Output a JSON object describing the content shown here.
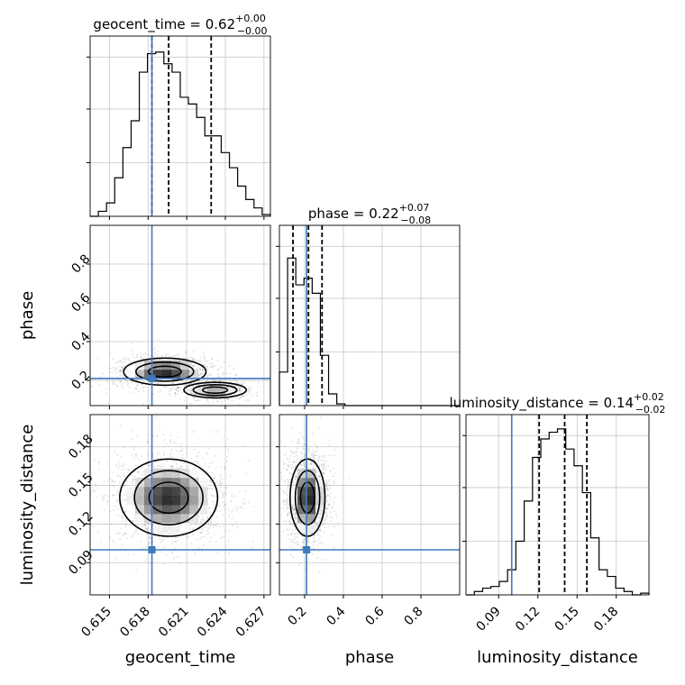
{
  "chart_data": {
    "type": "corner",
    "truth_color": "#3b7bbf",
    "params": [
      {
        "name": "geocent_time",
        "title": {
          "prefix": "geocent_time = ",
          "value": "0.62",
          "plus": "+0.00",
          "minus": "−0.00"
        },
        "range": [
          0.6135,
          0.6275
        ],
        "ticks": [
          0.615,
          0.618,
          0.621,
          0.624,
          0.627
        ],
        "tick_labels": [
          "0.615",
          "0.618",
          "0.621",
          "0.624",
          "0.627"
        ],
        "truth": 0.6183,
        "quantiles": [
          0.6183,
          0.6196,
          0.6229
        ],
        "hist": [
          0,
          0.03,
          0.08,
          0.23,
          0.41,
          0.57,
          0.86,
          0.97,
          0.98,
          0.91,
          0.86,
          0.71,
          0.67,
          0.59,
          0.48,
          0.48,
          0.38,
          0.29,
          0.18,
          0.1,
          0.05,
          0.01
        ]
      },
      {
        "name": "phase",
        "title": {
          "prefix": "phase = ",
          "value": "0.22",
          "plus": "+0.07",
          "minus": "−0.08"
        },
        "range": [
          0.07,
          1.0
        ],
        "ticks": [
          0.2,
          0.4,
          0.6,
          0.8
        ],
        "tick_labels": [
          "0.2",
          "0.4",
          "0.6",
          "0.8"
        ],
        "truth": 0.21,
        "quantiles": [
          0.14,
          0.22,
          0.29
        ],
        "hist": [
          0.2,
          0.88,
          0.72,
          0.76,
          0.67,
          0.3,
          0.07,
          0.01,
          0,
          0,
          0,
          0,
          0,
          0,
          0,
          0,
          0,
          0,
          0,
          0,
          0,
          0
        ]
      },
      {
        "name": "luminosity_distance",
        "title": {
          "prefix": "luminosity_distance = ",
          "value": "0.14",
          "plus": "+0.02",
          "minus": "−0.02"
        },
        "range": [
          0.065,
          0.205
        ],
        "ticks": [
          0.09,
          0.12,
          0.15,
          0.18
        ],
        "tick_labels": [
          "0.09",
          "0.12",
          "0.15",
          "0.18"
        ],
        "truth": 0.1,
        "quantiles": [
          0.121,
          0.1405,
          0.1575
        ],
        "hist": [
          0,
          0.02,
          0.04,
          0.05,
          0.08,
          0.15,
          0.32,
          0.56,
          0.82,
          0.93,
          0.97,
          0.99,
          0.87,
          0.77,
          0.61,
          0.34,
          0.15,
          0.11,
          0.04,
          0.02,
          0,
          0.01
        ]
      }
    ],
    "panels_2d": [
      {
        "x": "geocent_time",
        "y": "phase",
        "blobs": [
          {
            "cx": 0.6193,
            "cy": 0.245,
            "sx": 0.0016,
            "sy": 0.035,
            "w": 1.0
          },
          {
            "cx": 0.6232,
            "cy": 0.15,
            "sx": 0.0011,
            "sy": 0.02,
            "w": 0.55
          }
        ]
      },
      {
        "x": "geocent_time",
        "y": "luminosity_distance",
        "blobs": [
          {
            "cx": 0.6196,
            "cy": 0.1405,
            "sx": 0.0019,
            "sy": 0.015,
            "w": 1.0
          }
        ]
      },
      {
        "x": "phase",
        "y": "luminosity_distance",
        "blobs": [
          {
            "cx": 0.215,
            "cy": 0.1405,
            "sx": 0.045,
            "sy": 0.015,
            "w": 1.0
          }
        ]
      }
    ]
  }
}
